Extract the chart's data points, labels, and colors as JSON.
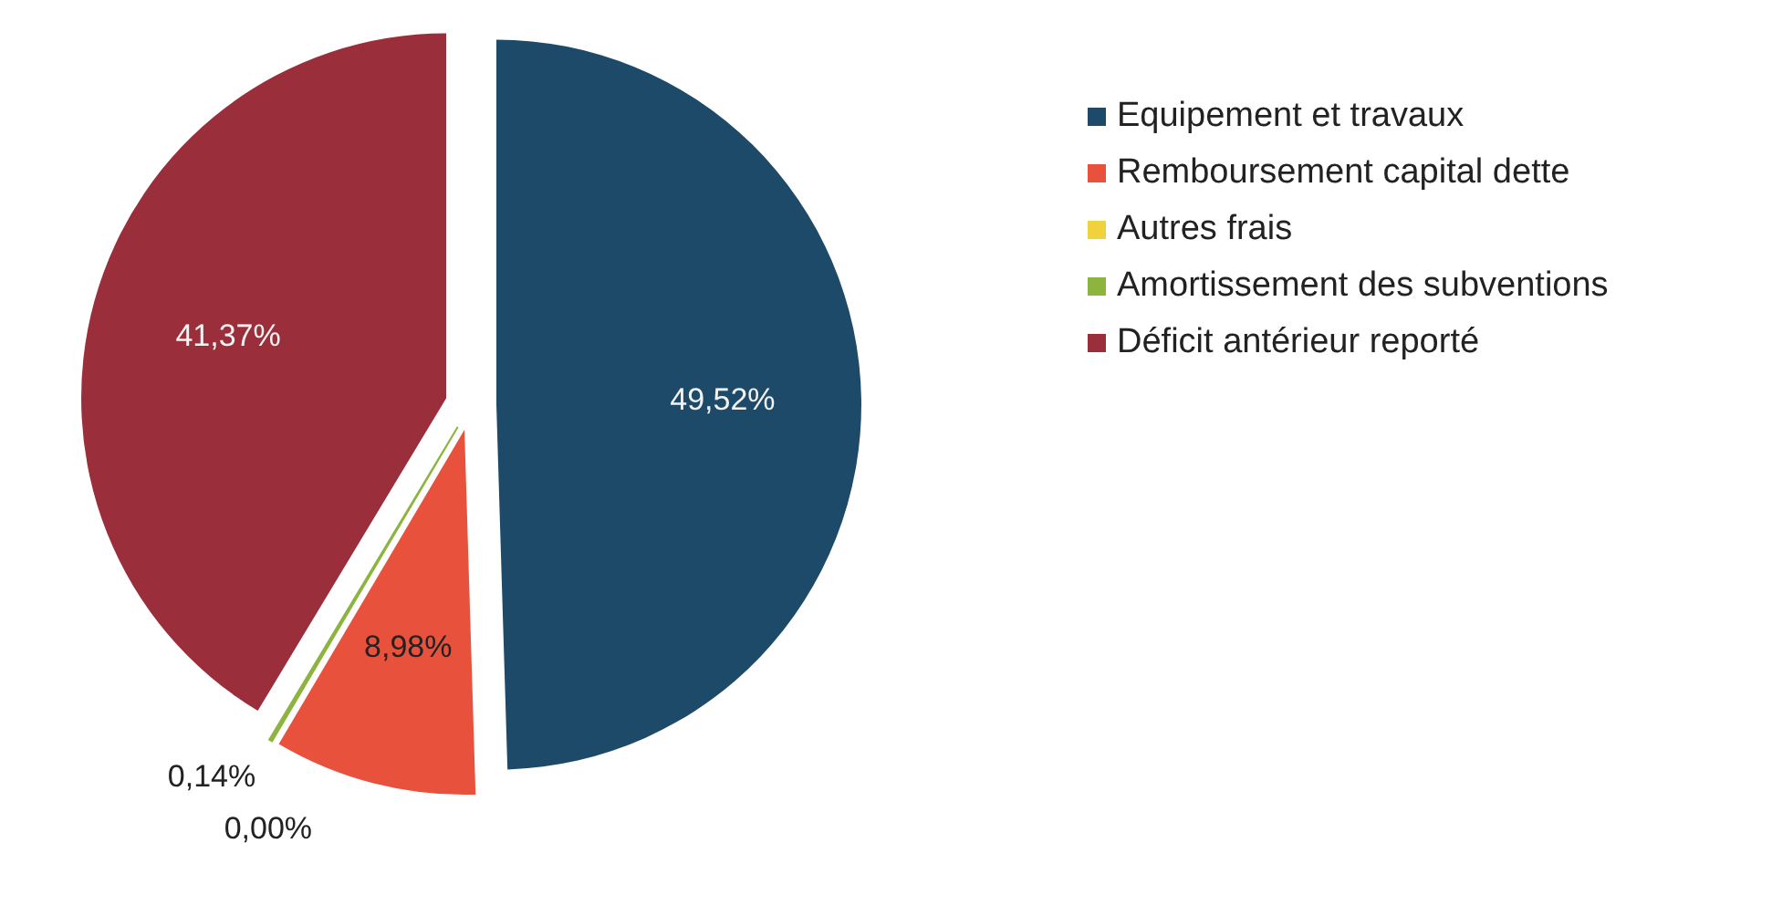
{
  "chart_data": {
    "type": "pie",
    "categories": [
      "Equipement et travaux",
      "Remboursement capital dette",
      "Autres frais",
      "Amortissement des subventions",
      "Déficit antérieur reporté"
    ],
    "values": [
      49.52,
      8.98,
      0.0,
      0.14,
      41.37
    ],
    "colors": [
      "#1d4a68",
      "#e8513b",
      "#f0d23c",
      "#8db43e",
      "#9a2e3b"
    ],
    "value_labels": [
      "49,52%",
      "8,98%",
      "0,00%",
      "0,14%",
      "41,37%"
    ],
    "legend": "right"
  }
}
